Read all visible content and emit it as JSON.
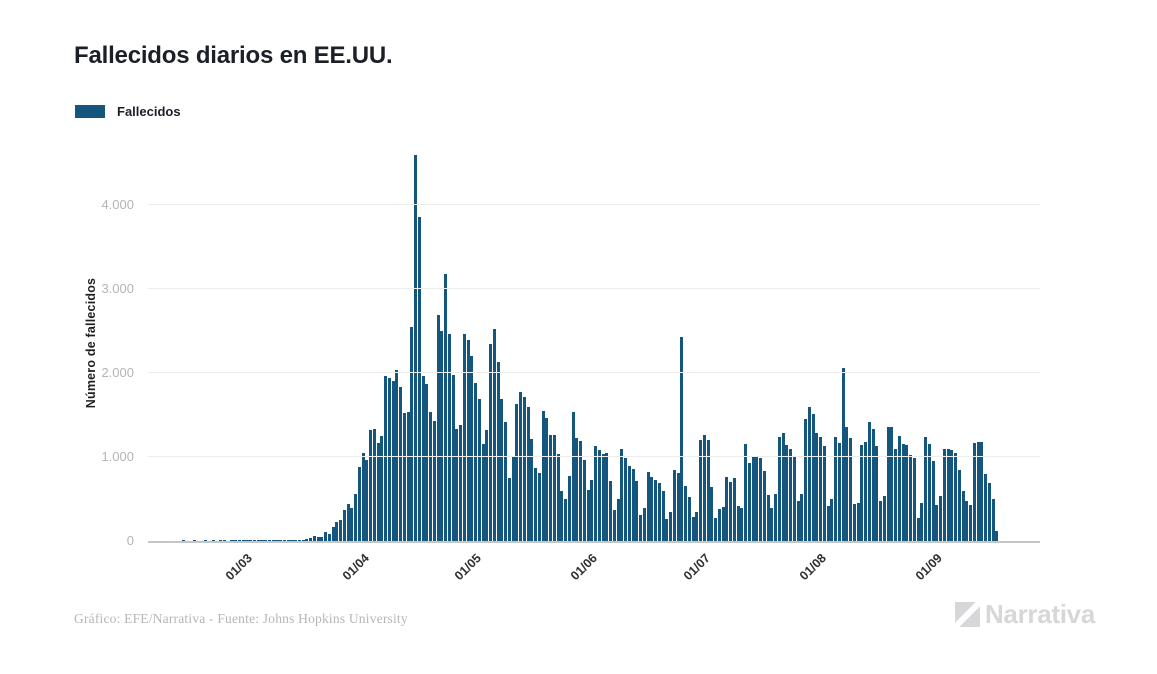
{
  "title": "Fallecidos diarios en EE.UU.",
  "legend": {
    "label": "Fallecidos"
  },
  "footer": {
    "credit": "Gráfico: EFE/Narrativa - Fuente: Johns Hopkins University",
    "brand": "Narrativa"
  },
  "colors": {
    "bar": "#15567E",
    "title_text": "#1b1f27",
    "grid": "#ececec",
    "axis_line": "#c6c6c6",
    "y_tick_text": "#b4b4b4",
    "x_tick_text": "#2f2f2f",
    "credit_text": "#b6b6b6",
    "brand_text": "#d7d7d9"
  },
  "chart_data": {
    "type": "bar",
    "title": "Fallecidos diarios en EE.UU.",
    "xlabel": "",
    "ylabel": "Número de fallecidos",
    "legend_entries": [
      "Fallecidos"
    ],
    "legend_position": "top-left",
    "grid": true,
    "ylim": [
      0,
      4714
    ],
    "y_tick_values": [
      0,
      1000,
      2000,
      3000,
      4000
    ],
    "y_tick_labels": [
      "0",
      "1.000",
      "2.000",
      "3.000",
      "4.000"
    ],
    "x_ticks": [
      {
        "label": "01/03",
        "index": 26
      },
      {
        "label": "01/04",
        "index": 57
      },
      {
        "label": "01/05",
        "index": 87
      },
      {
        "label": "01/06",
        "index": 118
      },
      {
        "label": "01/07",
        "index": 148
      },
      {
        "label": "01/08",
        "index": 179
      },
      {
        "label": "01/09",
        "index": 210
      }
    ],
    "series": [
      {
        "name": "Fallecidos",
        "values": [
          0,
          0,
          0,
          0,
          0,
          0,
          0,
          0,
          0,
          1,
          0,
          0,
          1,
          0,
          0,
          1,
          0,
          1,
          0,
          1,
          1,
          0,
          1,
          1,
          1,
          1,
          1,
          5,
          3,
          2,
          1,
          3,
          4,
          3,
          4,
          4,
          8,
          3,
          8,
          10,
          11,
          18,
          23,
          41,
          57,
          49,
          46,
          111,
          80,
          164,
          225,
          246,
          372,
          441,
          389,
          558,
          884,
          1049,
          968,
          1321,
          1331,
          1165,
          1255,
          1970,
          1940,
          1900,
          2035,
          1830,
          1528,
          1535,
          2543,
          4591,
          3857,
          1959,
          1867,
          1539,
          1433,
          2693,
          2500,
          3179,
          2465,
          1975,
          1330,
          1384,
          2470,
          2390,
          2201,
          1883,
          1691,
          1154,
          1324,
          2350,
          2528,
          2129,
          1687,
          1422,
          750,
          1008,
          1630,
          1772,
          1715,
          1595,
          1218,
          865,
          808,
          1552,
          1461,
          1263,
          1260,
          1035,
          592,
          500,
          774,
          1535,
          1223,
          1193,
          960,
          605,
          730,
          1134,
          1083,
          1031,
          1051,
          710,
          373,
          497,
          1093,
          993,
          891,
          853,
          712,
          312,
          389,
          822,
          760,
          722,
          688,
          597,
          267,
          349,
          850,
          808,
          2425,
          650,
          520,
          280,
          350,
          1200,
          1260,
          1200,
          640,
          270,
          380,
          400,
          760,
          700,
          750,
          420,
          390,
          1150,
          930,
          1000,
          1000,
          990,
          830,
          550,
          390,
          560,
          1240,
          1290,
          1140,
          1100,
          1000,
          480,
          560,
          1450,
          1600,
          1510,
          1290,
          1240,
          1130,
          420,
          500,
          1240,
          1170,
          2060,
          1360,
          1230,
          440,
          450,
          1140,
          1180,
          1420,
          1330,
          1130,
          480,
          530,
          1360,
          1355,
          1090,
          1250,
          1150,
          1140,
          1020,
          990,
          270,
          450,
          1240,
          1160,
          950,
          430,
          530,
          1100,
          1095,
          1080,
          1050,
          850,
          600,
          480,
          430,
          1170,
          1175,
          1180,
          800,
          690,
          500,
          120
        ]
      }
    ]
  }
}
